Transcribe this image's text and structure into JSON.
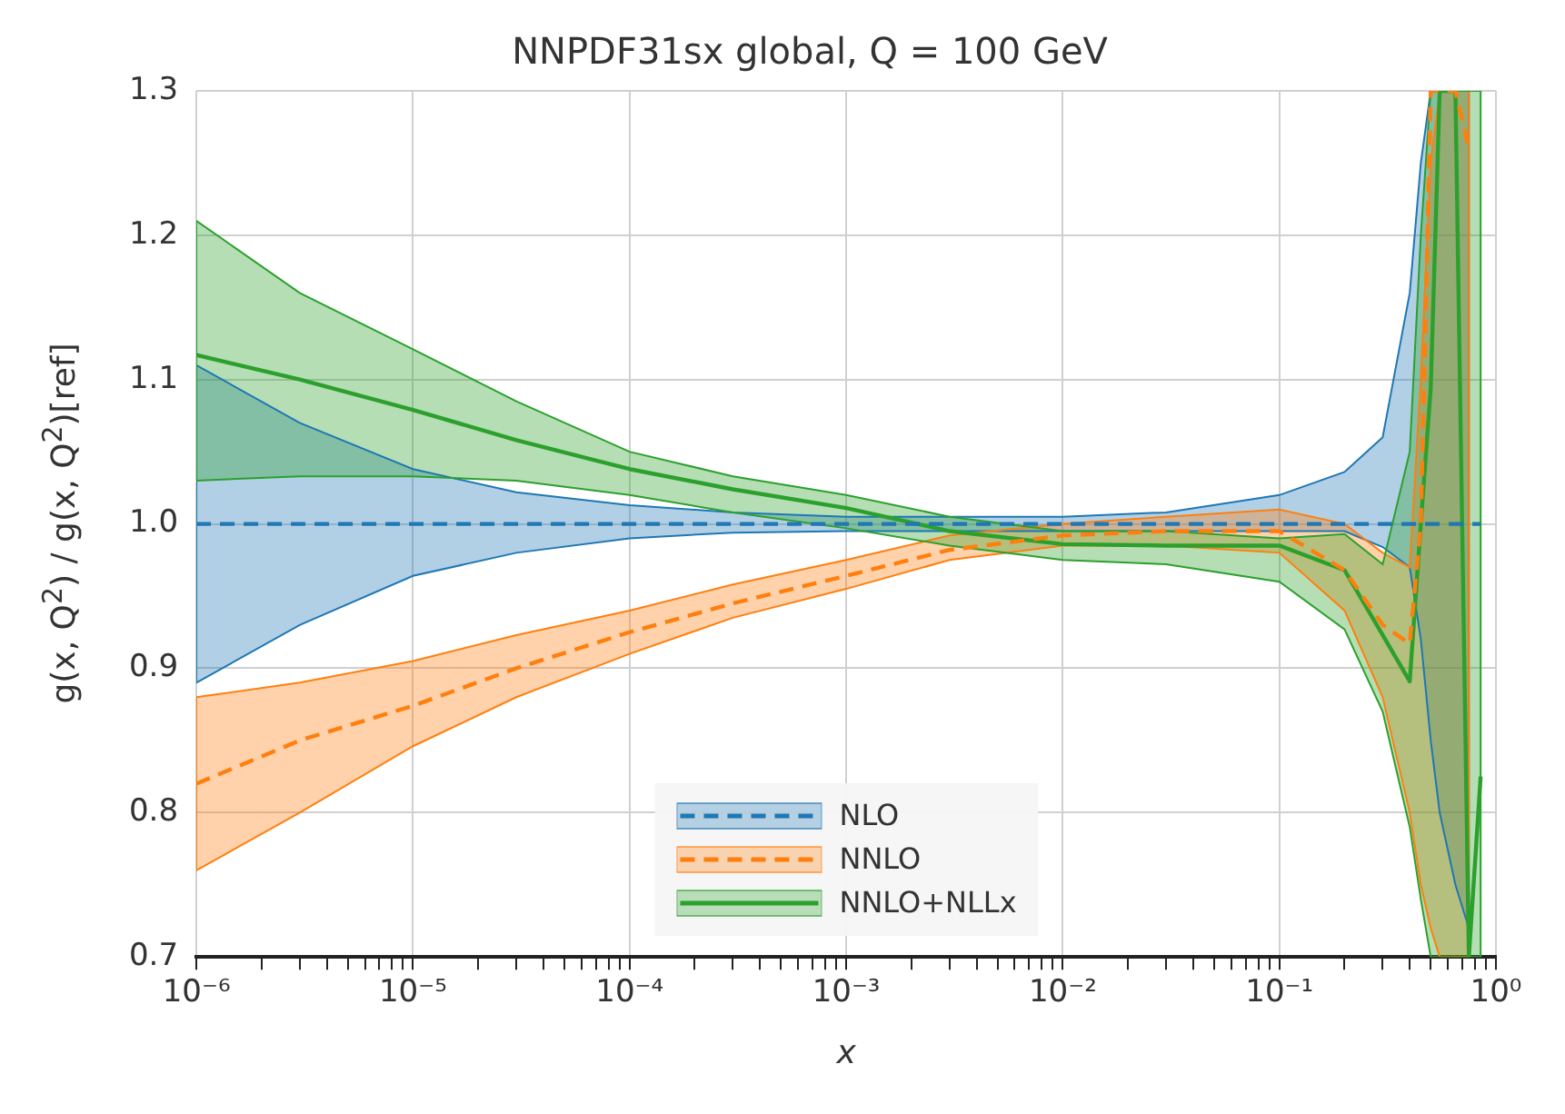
{
  "chart_data": {
    "type": "line",
    "title": "NNPDF31sx global, Q = 100 GeV",
    "xlabel": "x",
    "ylabel": "g(x, Q$^{2}$) / g(x, Q$^{2}$)[ref]",
    "log": "x",
    "grid": true,
    "legend": "bottom",
    "marker": "none",
    "xlim": [
      1e-06,
      1
    ],
    "ylim": [
      0.7,
      1.3
    ],
    "xticks": [
      {
        "value": 1e-06,
        "label": "10⁻⁶"
      },
      {
        "value": 1e-05,
        "label": "10⁻⁵"
      },
      {
        "value": 0.0001,
        "label": "10⁻⁴"
      },
      {
        "value": 0.001,
        "label": "10⁻³"
      },
      {
        "value": 0.01,
        "label": "10⁻²"
      },
      {
        "value": 0.1,
        "label": "10⁻¹"
      },
      {
        "value": 1,
        "label": "10⁰"
      }
    ],
    "yticks": [
      0.7,
      0.8,
      0.9,
      {
        "value": 1,
        "label": "1.0"
      },
      1.1,
      1.2,
      1.3
    ],
    "x": [
      1e-06,
      3e-06,
      1e-05,
      3e-05,
      0.0001,
      0.0003,
      0.001,
      0.003,
      0.01,
      0.03,
      0.1,
      0.2,
      0.3,
      0.4,
      0.45,
      0.5,
      0.55,
      0.65,
      0.75,
      0.85
    ],
    "series": [
      {
        "name": "NLO",
        "color": "#1f77b4",
        "line_style": "dashed",
        "values": [
          1,
          1,
          1,
          1,
          1,
          1,
          1,
          1,
          1,
          1,
          1,
          1,
          1,
          1,
          1,
          1,
          1,
          1,
          1,
          1
        ],
        "lower": [
          0.89,
          0.93,
          0.964,
          0.98,
          0.99,
          0.994,
          0.995,
          0.995,
          0.995,
          0.995,
          0.995,
          0.995,
          0.984,
          0.97,
          0.92,
          0.85,
          0.8,
          0.75,
          0.72,
          null
        ],
        "upper": [
          1.11,
          1.07,
          1.038,
          1.022,
          1.013,
          1.008,
          1.005,
          1.005,
          1.005,
          1.008,
          1.02,
          1.036,
          1.06,
          1.16,
          1.25,
          1.3,
          1.3,
          1.3,
          1.3,
          null
        ]
      },
      {
        "name": "NNLO",
        "color": "#ff7f0e",
        "line_style": "dashed",
        "values": [
          0.82,
          0.85,
          0.874,
          0.9,
          0.925,
          0.945,
          0.964,
          0.982,
          0.992,
          0.995,
          0.995,
          0.968,
          0.93,
          0.917,
          1.0,
          1.3,
          1.3,
          1.3,
          1.26,
          null
        ],
        "lower": [
          0.76,
          0.8,
          0.846,
          0.88,
          0.91,
          0.935,
          0.955,
          0.975,
          0.985,
          0.985,
          0.98,
          0.94,
          0.88,
          0.8,
          0.75,
          0.72,
          0.7,
          0.7,
          0.7,
          null
        ],
        "upper": [
          0.88,
          0.89,
          0.905,
          0.923,
          0.94,
          0.958,
          0.975,
          0.992,
          1.0,
          1.005,
          1.01,
          1.0,
          0.98,
          0.97,
          1.1,
          1.25,
          1.3,
          1.3,
          1.3,
          null
        ]
      },
      {
        "name": "NNLO+NLLx",
        "color": "#2ca02c",
        "line_style": "solid",
        "values": [
          1.117,
          1.1,
          1.079,
          1.058,
          1.038,
          1.024,
          1.011,
          0.995,
          0.986,
          0.985,
          0.985,
          0.968,
          0.923,
          0.891,
          1.0,
          1.094,
          1.3,
          1.3,
          0.7,
          0.825
        ],
        "lower": [
          1.03,
          1.033,
          1.033,
          1.03,
          1.02,
          1.008,
          0.997,
          0.985,
          0.975,
          0.972,
          0.96,
          0.927,
          0.87,
          0.79,
          0.74,
          0.7,
          0.7,
          0.7,
          0.7,
          0.7
        ],
        "upper": [
          1.21,
          1.16,
          1.121,
          1.085,
          1.05,
          1.033,
          1.02,
          1.005,
          0.995,
          0.995,
          0.99,
          0.993,
          0.972,
          1.05,
          1.2,
          1.3,
          1.3,
          1.3,
          1.3,
          1.3
        ]
      }
    ]
  }
}
